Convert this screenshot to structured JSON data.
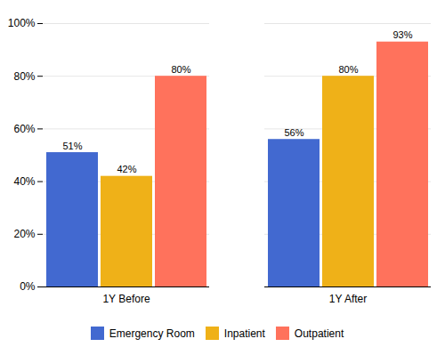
{
  "chart_data": {
    "type": "bar",
    "categories": [
      "1Y Before",
      "1Y After"
    ],
    "series": [
      {
        "name": "Emergency Room",
        "values": [
          51,
          56
        ],
        "value_labels": [
          "51%",
          "56%"
        ]
      },
      {
        "name": "Inpatient",
        "values": [
          42,
          80
        ],
        "value_labels": [
          "42%",
          "80%"
        ]
      },
      {
        "name": "Outpatient",
        "values": [
          80,
          93
        ],
        "value_labels": [
          "80%",
          "93%"
        ]
      }
    ],
    "ylim": [
      0,
      100
    ],
    "yticks": [
      {
        "value": 0,
        "label": "0%"
      },
      {
        "value": 20,
        "label": "20%"
      },
      {
        "value": 40,
        "label": "40%"
      },
      {
        "value": 60,
        "label": "60%"
      },
      {
        "value": 80,
        "label": "80%"
      },
      {
        "value": 100,
        "label": "100%"
      }
    ],
    "grid": true,
    "legend": "bottom",
    "data_labels": true
  }
}
